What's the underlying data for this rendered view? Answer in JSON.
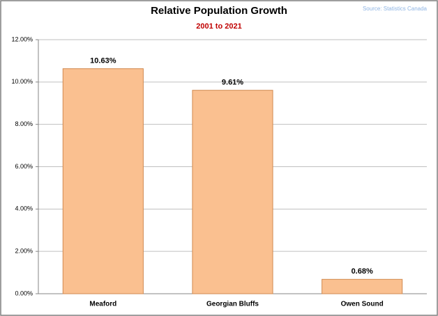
{
  "chart_data": {
    "type": "bar",
    "title": "Relative Population Growth",
    "subtitle": "2001 to 2021",
    "source": "Source: Statistics Canada",
    "categories": [
      "Meaford",
      "Georgian Bluffs",
      "Owen Sound"
    ],
    "values": [
      10.63,
      9.61,
      0.68
    ],
    "value_labels": [
      "10.63%",
      "9.61%",
      "0.68%"
    ],
    "color": "#fac090",
    "ylim": [
      0,
      12
    ],
    "yticks": [
      {
        "value": 0,
        "label": "0.00%"
      },
      {
        "value": 2,
        "label": "2.00%"
      },
      {
        "value": 4,
        "label": "4.00%"
      },
      {
        "value": 6,
        "label": "6.00%"
      },
      {
        "value": 8,
        "label": "8.00%"
      },
      {
        "value": 10,
        "label": "10.00%"
      },
      {
        "value": 12,
        "label": "12.00%"
      }
    ],
    "grid": true
  }
}
